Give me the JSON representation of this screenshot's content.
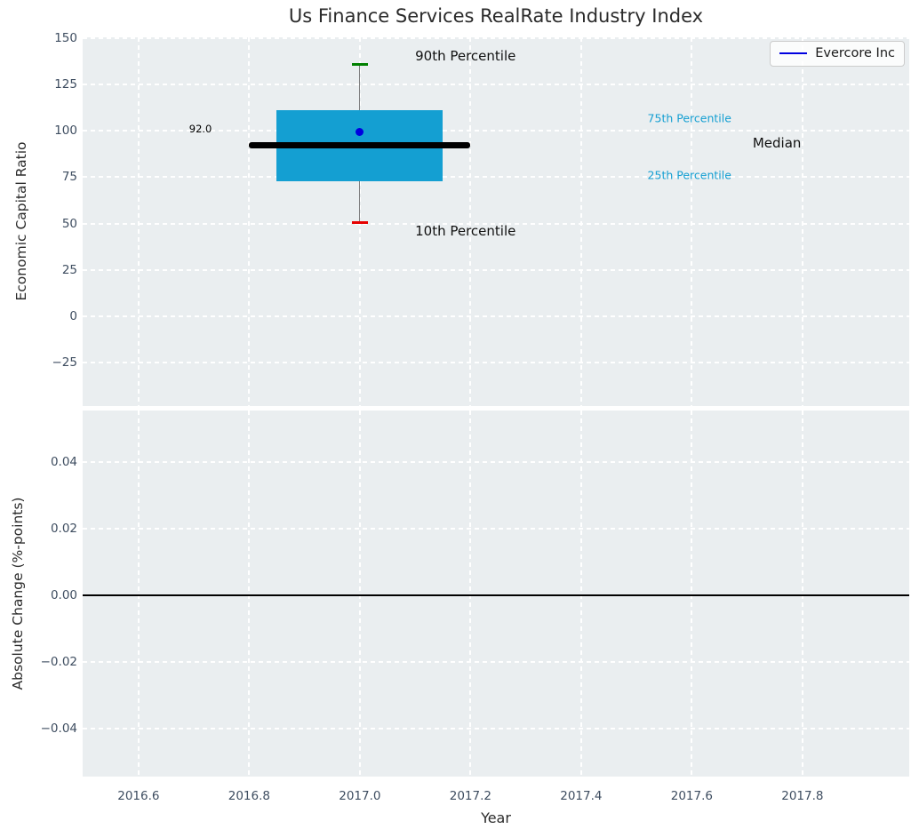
{
  "figure": {
    "title": "Us Finance Services RealRate Industry Index",
    "background": "#ffffff",
    "axes_background": "#eaeef0",
    "grid_color": "#ffffff",
    "tick_color": "#3e4d60"
  },
  "legend": {
    "label": "Evercore Inc",
    "line_color": "#0000e0",
    "position": "upper right"
  },
  "x_axis": {
    "label": "Year",
    "lim": [
      2016.499,
      2017.993
    ],
    "ticks": [
      {
        "v": 2016.6,
        "label": "2016.6"
      },
      {
        "v": 2016.8,
        "label": "2016.8"
      },
      {
        "v": 2017.0,
        "label": "2017.0"
      },
      {
        "v": 2017.2,
        "label": "2017.2"
      },
      {
        "v": 2017.4,
        "label": "2017.4"
      },
      {
        "v": 2017.6,
        "label": "2017.6"
      },
      {
        "v": 2017.8,
        "label": "2017.8"
      }
    ]
  },
  "chart_data": [
    {
      "type": "boxplot",
      "panel": "top",
      "ylabel": "Economic Capital Ratio",
      "ylim": [
        -48.5,
        150.5
      ],
      "grid": true,
      "yticks": [
        {
          "v": 150,
          "label": "150"
        },
        {
          "v": 125,
          "label": "125"
        },
        {
          "v": 100,
          "label": "100"
        },
        {
          "v": 75,
          "label": "75"
        },
        {
          "v": 50,
          "label": "50"
        },
        {
          "v": 25,
          "label": "25"
        },
        {
          "v": 0,
          "label": "0"
        },
        {
          "v": -25,
          "label": "−25"
        }
      ],
      "box": {
        "x_center": 2017.0,
        "x_left": 2016.85,
        "x_right": 2017.15,
        "q1": 73,
        "q3": 111,
        "median": 92,
        "median_x_left": 2016.8,
        "median_x_right": 2017.2,
        "p10": 50.5,
        "p90": 136,
        "cap_half_width": 0.015,
        "colors": {
          "box": "#149fd2",
          "median": "#000000",
          "whisker": "#808080",
          "p90_cap": "#008000",
          "p10_cap": "#e60000"
        }
      },
      "company_point": {
        "name": "Evercore Inc",
        "x": 2017.0,
        "y": 99.5,
        "color": "#0000e0"
      },
      "annotations": [
        {
          "text": "92.0",
          "x": 2016.712,
          "y": 101,
          "color": "#000000",
          "size": "sm",
          "align": "center"
        },
        {
          "text": "90th Percentile",
          "x": 2017.1,
          "y": 140.5,
          "color": "#111111",
          "size": "lg",
          "align": "left"
        },
        {
          "text": "10th Percentile",
          "x": 2017.1,
          "y": 46,
          "color": "#111111",
          "size": "lg",
          "align": "left"
        },
        {
          "text": "75th Percentile",
          "x": 2017.52,
          "y": 107,
          "color": "#149fd2",
          "size": "md",
          "align": "left"
        },
        {
          "text": "Median",
          "x": 2017.71,
          "y": 93.5,
          "color": "#111111",
          "size": "lg",
          "align": "left"
        },
        {
          "text": "25th Percentile",
          "x": 2017.52,
          "y": 76,
          "color": "#149fd2",
          "size": "md",
          "align": "left"
        }
      ]
    },
    {
      "type": "line",
      "panel": "bottom",
      "ylabel": "Absolute Change (%-points)",
      "ylim": [
        -0.0544,
        0.0555
      ],
      "grid": true,
      "yticks": [
        {
          "v": 0.04,
          "label": "0.04"
        },
        {
          "v": 0.02,
          "label": "0.02"
        },
        {
          "v": 0.0,
          "label": "0.00"
        },
        {
          "v": -0.02,
          "label": "−0.02"
        },
        {
          "v": -0.04,
          "label": "−0.04"
        }
      ],
      "zero_line": {
        "y": 0,
        "color": "#000000"
      },
      "series": []
    }
  ]
}
